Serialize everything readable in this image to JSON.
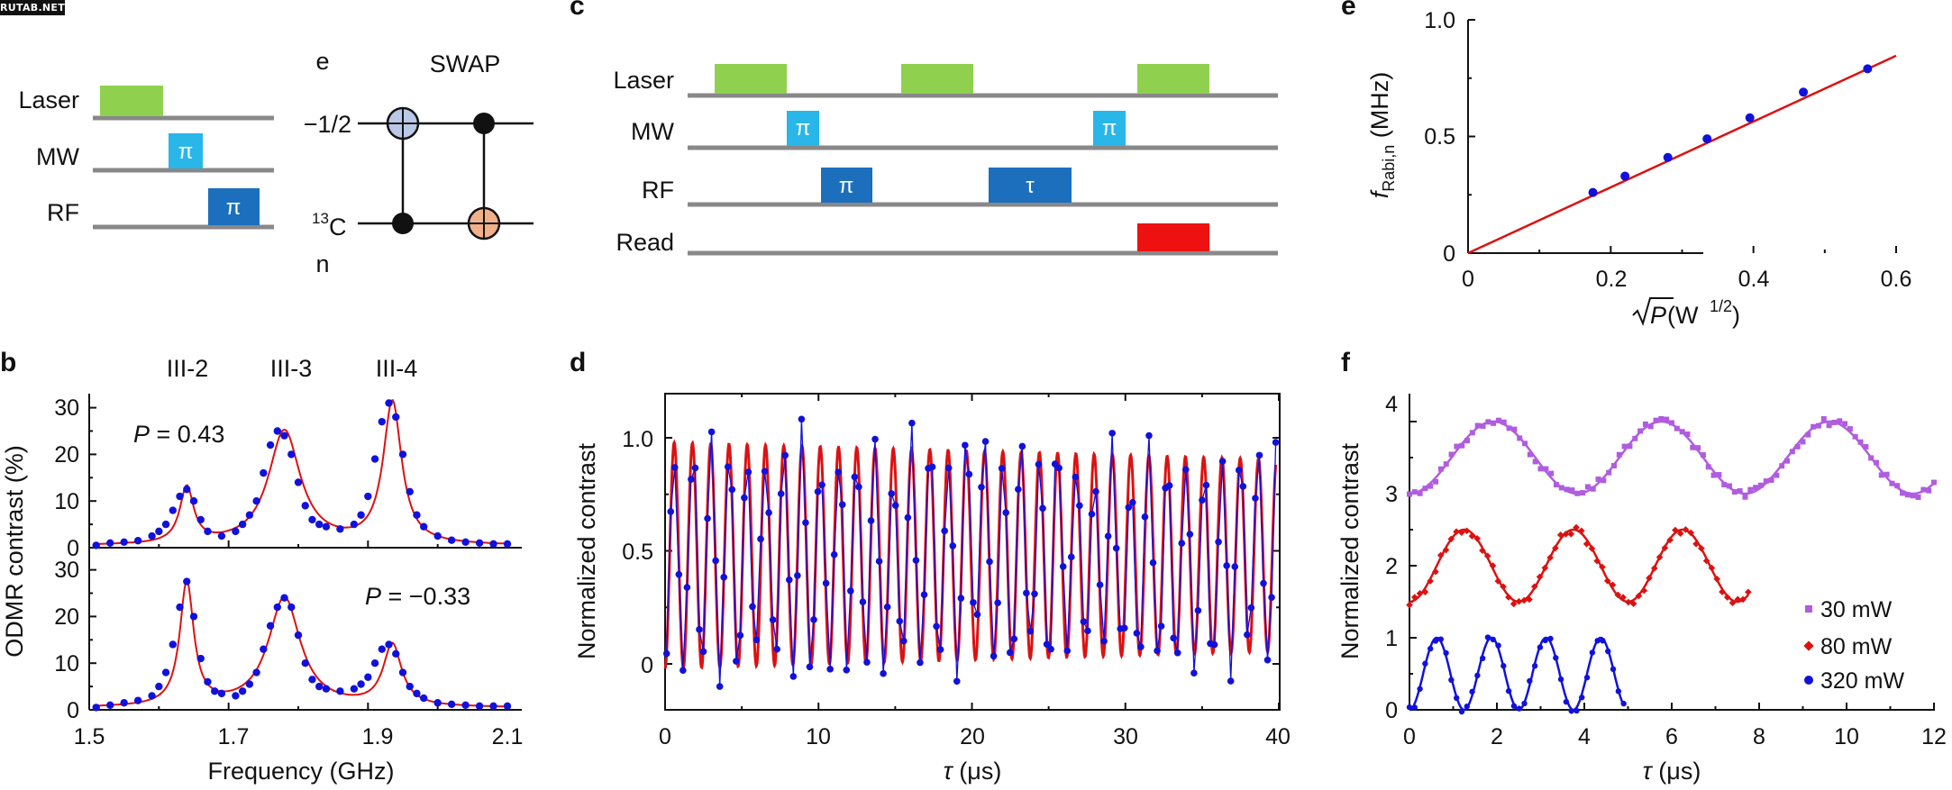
{
  "watermark": "RUTAB.NET",
  "colors": {
    "laser": "#8fd14f",
    "mw": "#29b6e8",
    "rf": "#1b6fbd",
    "read": "#ee1111",
    "line": "#888888",
    "fit": "#dd1111",
    "data": "#1111dd",
    "cnot_target_blue": "#b9c8e6",
    "cnot_target_orange": "#f0b08a",
    "s30": "#b05ce0",
    "s80": "#dd1111",
    "s320": "#1111dd"
  },
  "panel_a": {
    "rows": [
      "Laser",
      "MW",
      "RF"
    ],
    "pi": "π",
    "swap": {
      "title": "SWAP",
      "e": "e",
      "n": "n",
      "q1": "−1/2",
      "q2_sup": "13",
      "q2": "C"
    }
  },
  "panel_b": {
    "label": "b",
    "peaks": [
      "III-2",
      "III-3",
      "III-4"
    ],
    "top_annot_italic": "P",
    "top_annot": " = 0.43",
    "bottom_annot_italic": "P",
    "bottom_annot": " = −0.33",
    "ylabel": "ODMR contrast (%)",
    "xlabel": "Frequency (GHz)",
    "xticks": [
      "1.5",
      "1.7",
      "1.9",
      "2.1"
    ],
    "yticks": [
      "0",
      "10",
      "20",
      "30"
    ]
  },
  "panel_c": {
    "label": "c",
    "rows": [
      "Laser",
      "MW",
      "RF",
      "Read"
    ],
    "pi": "π",
    "tau": "τ"
  },
  "panel_d": {
    "label": "d",
    "ylabel": "Normalized contrast",
    "xlabel_italic": "τ",
    "xlabel": " (μs)",
    "xticks": [
      "0",
      "10",
      "20",
      "30",
      "40"
    ],
    "yticks": [
      "0",
      "0.5",
      "1.0"
    ]
  },
  "panel_e": {
    "label": "e",
    "ylabel_f": "f",
    "ylabel_sub": "Rabi,n",
    "ylabel_unit": " (MHz)",
    "xlabel_p": "P",
    "xlabel_unit": " (W",
    "xlabel_sup": "1/2",
    "xlabel_end": ")",
    "xticks": [
      "0",
      "0.2",
      "0.4",
      "0.6"
    ],
    "yticks": [
      "0",
      "0.5",
      "1.0"
    ]
  },
  "panel_f": {
    "label": "f",
    "ylabel": "Normalized contrast",
    "xlabel_italic": "τ",
    "xlabel": " (μs)",
    "xticks": [
      "0",
      "2",
      "4",
      "6",
      "8",
      "10",
      "12"
    ],
    "yticks": [
      "0",
      "1",
      "2",
      "3",
      "4"
    ],
    "legend": [
      "30 mW",
      "80 mW",
      "320 mW"
    ]
  },
  "chart_data": [
    {
      "panel": "b-top",
      "type": "line",
      "xlabel": "Frequency (GHz)",
      "ylabel": "ODMR contrast (%)",
      "xlim": [
        1.5,
        2.1
      ],
      "ylim": [
        0,
        33
      ],
      "annotation": "P = 0.43",
      "peak_labels": [
        "III-2",
        "III-3",
        "III-4"
      ],
      "peaks_ghz": [
        1.64,
        1.78,
        1.935
      ],
      "peak_heights": [
        12.5,
        25,
        31
      ],
      "series": [
        {
          "values_x": [
            1.51,
            1.53,
            1.55,
            1.57,
            1.59,
            1.6,
            1.61,
            1.62,
            1.63,
            1.64,
            1.65,
            1.66,
            1.67,
            1.69,
            1.71,
            1.72,
            1.73,
            1.74,
            1.75,
            1.76,
            1.77,
            1.78,
            1.79,
            1.8,
            1.81,
            1.82,
            1.83,
            1.84,
            1.86,
            1.88,
            1.89,
            1.9,
            1.91,
            1.92,
            1.93,
            1.94,
            1.95,
            1.96,
            1.97,
            1.98,
            2.0,
            2.02,
            2.04,
            2.06,
            2.08,
            2.1
          ],
          "values_y": [
            0.5,
            1,
            1.2,
            1.5,
            2.5,
            3.5,
            5,
            8,
            11,
            12.5,
            10,
            6,
            3.5,
            2.5,
            3.5,
            5,
            7,
            10,
            16,
            22,
            25,
            24,
            20,
            14,
            9,
            6,
            5,
            4.5,
            4,
            5,
            7,
            11,
            19,
            27,
            31,
            28,
            20,
            12,
            7,
            4.5,
            2.5,
            1.6,
            1.2,
            1,
            0.8,
            0.8
          ]
        }
      ]
    },
    {
      "panel": "b-bottom",
      "type": "line",
      "xlabel": "Frequency (GHz)",
      "ylabel": "ODMR contrast (%)",
      "xlim": [
        1.5,
        2.1
      ],
      "ylim": [
        0,
        33
      ],
      "annotation": "P = −0.33",
      "series": [
        {
          "values_x": [
            1.51,
            1.53,
            1.55,
            1.57,
            1.59,
            1.6,
            1.61,
            1.62,
            1.63,
            1.64,
            1.65,
            1.66,
            1.67,
            1.68,
            1.69,
            1.71,
            1.72,
            1.73,
            1.74,
            1.75,
            1.76,
            1.77,
            1.78,
            1.79,
            1.8,
            1.81,
            1.82,
            1.83,
            1.84,
            1.86,
            1.88,
            1.89,
            1.9,
            1.91,
            1.92,
            1.93,
            1.94,
            1.95,
            1.96,
            1.97,
            1.98,
            2.0,
            2.02,
            2.04,
            2.06,
            2.08,
            2.1
          ],
          "values_y": [
            0.5,
            1,
            1.5,
            2,
            3,
            5,
            8,
            14,
            22,
            27.5,
            20,
            11,
            6,
            4,
            3.5,
            3,
            4,
            5.5,
            8,
            13,
            18,
            22,
            24,
            22,
            16,
            10,
            6.5,
            5,
            4.5,
            4,
            4.5,
            5.5,
            7,
            10,
            13,
            14,
            12,
            8,
            5,
            3.5,
            2.5,
            1.5,
            1.2,
            1,
            0.8,
            0.8,
            0.8
          ]
        }
      ]
    },
    {
      "panel": "d",
      "type": "line",
      "xlabel": "τ (μs)",
      "ylabel": "Normalized contrast",
      "xlim": [
        0,
        40
      ],
      "ylim": [
        -0.2,
        1.2
      ],
      "fit": {
        "period_us": 1.19,
        "amplitude_start": 1.0,
        "amplitude_end": 0.85
      },
      "series": [
        {
          "name": "",
          "points": 150
        }
      ]
    },
    {
      "panel": "e",
      "type": "scatter",
      "xlabel": "√P (W1/2)",
      "ylabel": "fRabi,n (MHz)",
      "xlim": [
        0,
        0.6
      ],
      "ylim": [
        0,
        1.0
      ],
      "x": [
        0.175,
        0.22,
        0.28,
        0.335,
        0.395,
        0.47,
        0.56
      ],
      "y": [
        0.26,
        0.33,
        0.41,
        0.49,
        0.58,
        0.69,
        0.79
      ],
      "fit_line": {
        "slope": 1.41,
        "intercept": 0
      }
    },
    {
      "panel": "f",
      "type": "scatter",
      "xlabel": "τ (μs)",
      "ylabel": "Normalized contrast",
      "xlim": [
        0,
        12
      ],
      "ylim": [
        0,
        4.2
      ],
      "series": [
        {
          "name": "30 mW",
          "offset": 3,
          "period_us": 3.84,
          "x_max": 12
        },
        {
          "name": "80 mW",
          "offset": 1.5,
          "period_us": 2.5,
          "x_max": 7.75
        },
        {
          "name": "320 mW",
          "offset": 0,
          "period_us": 1.25,
          "x_max": 4.9
        }
      ]
    }
  ]
}
